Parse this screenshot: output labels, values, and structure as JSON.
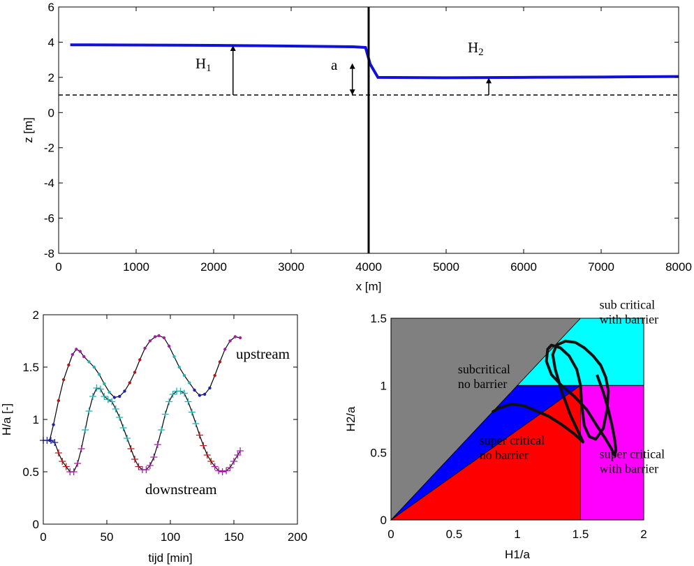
{
  "chart_data": [
    {
      "type": "line",
      "xlabel": "x [m]",
      "ylabel": "z [m]",
      "xlim": [
        0,
        8000
      ],
      "ylim": [
        -8,
        6
      ],
      "xticks": [
        0,
        1000,
        2000,
        3000,
        4000,
        5000,
        6000,
        7000,
        8000
      ],
      "yticks": [
        -8,
        -6,
        -4,
        -2,
        0,
        2,
        4,
        6
      ],
      "colors": {
        "water": "#1010dd",
        "barrier": "#000000",
        "reference": "#000000"
      },
      "series": [
        {
          "x": [
            150,
            2000,
            3000,
            3800,
            3960,
            4020,
            4120,
            5000,
            6000,
            7000,
            8000
          ],
          "y": [
            3.85,
            3.82,
            3.78,
            3.74,
            3.7,
            2.75,
            2.0,
            1.98,
            2.0,
            2.02,
            2.05
          ]
        }
      ],
      "barrier": {
        "x": 4000,
        "y_range": [
          -8,
          6
        ]
      },
      "reference_level": 1.0,
      "annotations": [
        {
          "text": "H",
          "sub": "1",
          "arrow": {
            "x": 2250,
            "from": 1.0,
            "to": 3.82
          }
        },
        {
          "text": "a",
          "arrow": {
            "x": 3790,
            "from": 1.0,
            "to": 2.8,
            "double": true
          }
        },
        {
          "text": "H",
          "sub": "2",
          "arrow": {
            "x": 5550,
            "from": 1.0,
            "to": 1.98
          }
        }
      ]
    },
    {
      "type": "line",
      "xlabel": "tijd [min]",
      "ylabel": "H/a [-]",
      "xlim": [
        0,
        200
      ],
      "ylim": [
        0,
        2
      ],
      "xticks": [
        0,
        50,
        100,
        150,
        200
      ],
      "yticks": [
        0,
        0.5,
        1,
        1.5,
        2
      ],
      "marker_colors": [
        "#2020b0",
        "#b01818",
        "#a020a0",
        "#20b0b0"
      ],
      "series": [
        {
          "name": "upstream",
          "marker": "dot",
          "x": [
            5,
            8,
            12,
            16,
            20,
            23,
            26,
            29,
            32,
            36,
            40,
            44,
            48,
            52,
            56,
            60,
            64,
            68,
            72,
            76,
            80,
            84,
            88,
            91,
            95,
            99,
            103,
            107,
            111,
            115,
            119,
            123,
            127,
            131,
            135,
            139,
            143,
            147,
            151,
            155
          ],
          "y": [
            0.8,
            0.95,
            1.18,
            1.38,
            1.52,
            1.62,
            1.67,
            1.65,
            1.6,
            1.55,
            1.5,
            1.43,
            1.34,
            1.26,
            1.21,
            1.22,
            1.27,
            1.35,
            1.45,
            1.57,
            1.68,
            1.75,
            1.79,
            1.8,
            1.78,
            1.7,
            1.6,
            1.5,
            1.42,
            1.35,
            1.28,
            1.23,
            1.24,
            1.3,
            1.42,
            1.55,
            1.67,
            1.75,
            1.79,
            1.78
          ],
          "colors": [
            "#2020b0",
            "#2020b0",
            "#b01818",
            "#b01818",
            "#b01818",
            "#a020a0",
            "#a020a0",
            "#a020a0",
            "#a020a0",
            "#20b0b0",
            "#20b0b0",
            "#20b0b0",
            "#20b0b0",
            "#20b0b0",
            "#2020b0",
            "#2020b0",
            "#2020b0",
            "#b01818",
            "#b01818",
            "#b01818",
            "#a020a0",
            "#a020a0",
            "#a020a0",
            "#a020a0",
            "#a020a0",
            "#a020a0",
            "#20b0b0",
            "#20b0b0",
            "#20b0b0",
            "#20b0b0",
            "#2020b0",
            "#2020b0",
            "#2020b0",
            "#2020b0",
            "#b01818",
            "#b01818",
            "#a020a0",
            "#a020a0",
            "#a020a0",
            "#a020a0"
          ]
        },
        {
          "name": "downstream",
          "marker": "plus",
          "x": [
            0,
            3,
            6,
            9,
            12,
            15,
            18,
            21,
            24,
            27,
            30,
            33,
            36,
            39,
            42,
            45,
            48,
            51,
            54,
            57,
            60,
            63,
            66,
            69,
            72,
            75,
            78,
            81,
            84,
            87,
            90,
            93,
            96,
            99,
            102,
            105,
            108,
            111,
            114,
            117,
            120,
            123,
            126,
            129,
            132,
            135,
            138,
            141,
            144,
            147,
            150,
            153,
            155
          ],
          "y": [
            0.8,
            0.8,
            0.8,
            0.78,
            0.68,
            0.6,
            0.55,
            0.5,
            0.5,
            0.58,
            0.72,
            0.9,
            1.08,
            1.22,
            1.3,
            1.29,
            1.22,
            1.19,
            1.17,
            1.1,
            1.02,
            0.92,
            0.82,
            0.72,
            0.62,
            0.55,
            0.52,
            0.52,
            0.56,
            0.64,
            0.76,
            0.9,
            1.05,
            1.17,
            1.24,
            1.27,
            1.27,
            1.25,
            1.17,
            1.07,
            0.96,
            0.85,
            0.75,
            0.66,
            0.6,
            0.55,
            0.51,
            0.5,
            0.51,
            0.54,
            0.6,
            0.66,
            0.7
          ],
          "colors": [
            "#2020b0",
            "#2020b0",
            "#2020b0",
            "#2020b0",
            "#b01818",
            "#b01818",
            "#b01818",
            "#a020a0",
            "#a020a0",
            "#a020a0",
            "#a020a0",
            "#20b0b0",
            "#20b0b0",
            "#20b0b0",
            "#20b0b0",
            "#20b0b0",
            "#20b0b0",
            "#20b0b0",
            "#20b0b0",
            "#20b0b0",
            "#20b0b0",
            "#20b0b0",
            "#20b0b0",
            "#b01818",
            "#b01818",
            "#b01818",
            "#a020a0",
            "#a020a0",
            "#a020a0",
            "#a020a0",
            "#a020a0",
            "#20b0b0",
            "#20b0b0",
            "#20b0b0",
            "#20b0b0",
            "#20b0b0",
            "#20b0b0",
            "#20b0b0",
            "#20b0b0",
            "#20b0b0",
            "#20b0b0",
            "#b01818",
            "#b01818",
            "#b01818",
            "#b01818",
            "#a020a0",
            "#a020a0",
            "#a020a0",
            "#a020a0",
            "#a020a0",
            "#a020a0",
            "#a020a0",
            "#a020a0"
          ]
        }
      ]
    },
    {
      "type": "area",
      "xlabel": "H1/a",
      "ylabel": "H2/a",
      "xlim": [
        0,
        2
      ],
      "ylim": [
        0,
        1.5
      ],
      "xticks": [
        0,
        0.5,
        1,
        1.5,
        2
      ],
      "yticks": [
        0,
        0.5,
        1,
        1.5
      ],
      "regions": [
        {
          "label": "subcritical no barrier",
          "color": "#808080",
          "points": [
            [
              0,
              0
            ],
            [
              1.5,
              1.5
            ],
            [
              0,
              1.5
            ]
          ]
        },
        {
          "label": "sub critical with barrier",
          "color": "#00ffff",
          "points": [
            [
              1,
              1
            ],
            [
              1.5,
              1.5
            ],
            [
              2,
              1.5
            ],
            [
              2,
              1
            ]
          ]
        },
        {
          "label": "super critical no barrier",
          "color": "#0000ff",
          "points": [
            [
              0,
              0
            ],
            [
              1,
              1
            ],
            [
              1.5,
              1
            ]
          ]
        },
        {
          "label": "super critical no barrier",
          "color": "#ff0000",
          "points": [
            [
              0,
              0
            ],
            [
              1.5,
              1
            ],
            [
              1.5,
              0
            ]
          ]
        },
        {
          "label": "super critical with barrier",
          "color": "#ff00ff",
          "points": [
            [
              1.5,
              0
            ],
            [
              1.5,
              1
            ],
            [
              2,
              1
            ],
            [
              2,
              0
            ]
          ]
        }
      ],
      "labels": [
        {
          "lines": [
            "sub critical",
            "with barrier"
          ],
          "x": 1.65,
          "y": 1.57
        },
        {
          "lines": [
            "subcritical",
            "no barrier"
          ],
          "x": 0.53,
          "y": 1.09
        },
        {
          "lines": [
            "super critical",
            "no barrier"
          ],
          "x": 0.7,
          "y": 0.56
        },
        {
          "lines": [
            "super critical",
            "with barrier"
          ],
          "x": 1.65,
          "y": 0.46
        }
      ],
      "series": [
        {
          "marker": "line",
          "x": [
            0.8,
            0.85,
            0.95,
            1.05,
            1.15,
            1.25,
            1.35,
            1.45,
            1.52,
            1.5,
            1.42,
            1.35,
            1.3,
            1.28,
            1.31,
            1.38,
            1.46,
            1.53,
            1.6,
            1.66,
            1.7,
            1.72,
            1.71,
            1.68,
            1.62,
            1.57,
            1.53,
            1.51,
            1.5,
            1.47,
            1.41,
            1.34,
            1.27,
            1.24,
            1.23,
            1.27,
            1.35,
            1.45,
            1.55,
            1.63,
            1.7,
            1.75,
            1.77,
            1.78,
            1.77,
            1.75,
            1.72,
            1.68,
            1.63
          ],
          "y": [
            0.8,
            0.83,
            0.86,
            0.85,
            0.81,
            0.77,
            0.71,
            0.64,
            0.58,
            0.62,
            0.78,
            0.96,
            1.12,
            1.23,
            1.3,
            1.33,
            1.32,
            1.28,
            1.22,
            1.15,
            1.06,
            0.96,
            0.82,
            0.68,
            0.6,
            0.62,
            0.7,
            0.85,
            1.0,
            1.12,
            1.22,
            1.28,
            1.3,
            1.27,
            1.18,
            1.08,
            1.0,
            0.92,
            0.82,
            0.7,
            0.6,
            0.52,
            0.48,
            0.52,
            0.6,
            0.7,
            0.82,
            0.95,
            1.08
          ]
        }
      ]
    }
  ]
}
